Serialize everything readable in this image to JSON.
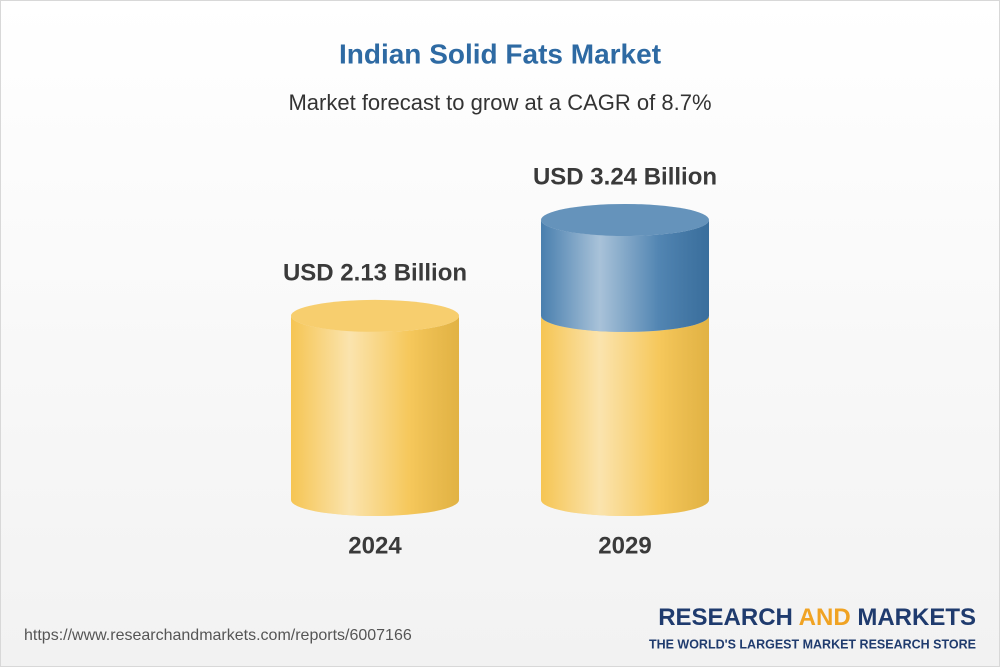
{
  "chart_data": {
    "type": "cylinder",
    "title": "Indian Solid Fats Market",
    "subtitle": "Market forecast to grow at a CAGR of 8.7%",
    "categories": [
      "2024",
      "2029"
    ],
    "values": [
      2.13,
      3.24
    ],
    "value_labels": [
      "USD 2.13 Billion",
      "USD 3.24 Billion"
    ],
    "color": "#f5c24a",
    "growth_color": "#3f78aa"
  },
  "footer": {
    "url": "https://www.researchandmarkets.com/reports/6007166",
    "brand": {
      "first": "RESEARCH",
      "middle": "AND",
      "last": "MARKETS"
    },
    "tagline": "THE WORLD'S LARGEST MARKET RESEARCH STORE"
  }
}
